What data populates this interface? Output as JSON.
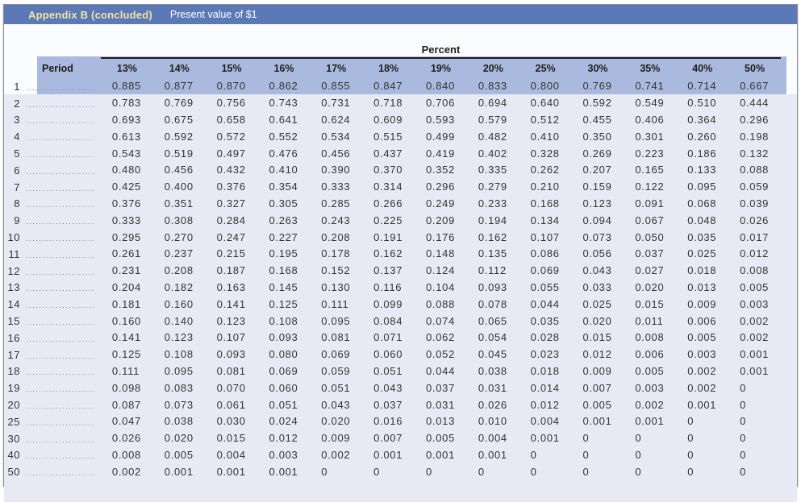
{
  "header": {
    "title": "Appendix B (concluded)",
    "subtitle": "Present value of $1"
  },
  "table": {
    "group_label": "Percent",
    "period_label": "Period",
    "columns": [
      "13%",
      "14%",
      "15%",
      "16%",
      "17%",
      "18%",
      "19%",
      "20%",
      "25%",
      "30%",
      "35%",
      "40%",
      "50%"
    ],
    "leader": "............................................",
    "rows": [
      {
        "period": "1",
        "values": [
          "0.885",
          "0.877",
          "0.870",
          "0.862",
          "0.855",
          "0.847",
          "0.840",
          "0.833",
          "0.800",
          "0.769",
          "0.741",
          "0.714",
          "0.667"
        ]
      },
      {
        "period": "2",
        "values": [
          "0.783",
          "0.769",
          "0.756",
          "0.743",
          "0.731",
          "0.718",
          "0.706",
          "0.694",
          "0.640",
          "0.592",
          "0.549",
          "0.510",
          "0.444"
        ]
      },
      {
        "period": "3",
        "values": [
          "0.693",
          "0.675",
          "0.658",
          "0.641",
          "0.624",
          "0.609",
          "0.593",
          "0.579",
          "0.512",
          "0.455",
          "0.406",
          "0.364",
          "0.296"
        ]
      },
      {
        "period": "4",
        "values": [
          "0.613",
          "0.592",
          "0.572",
          "0.552",
          "0.534",
          "0.515",
          "0.499",
          "0.482",
          "0.410",
          "0.350",
          "0.301",
          "0.260",
          "0.198"
        ]
      },
      {
        "period": "5",
        "values": [
          "0.543",
          "0.519",
          "0.497",
          "0.476",
          "0.456",
          "0.437",
          "0.419",
          "0.402",
          "0.328",
          "0.269",
          "0.223",
          "0.186",
          "0.132"
        ]
      },
      {
        "period": "6",
        "values": [
          "0.480",
          "0.456",
          "0.432",
          "0.410",
          "0.390",
          "0.370",
          "0.352",
          "0.335",
          "0.262",
          "0.207",
          "0.165",
          "0.133",
          "0.088"
        ]
      },
      {
        "period": "7",
        "values": [
          "0.425",
          "0.400",
          "0.376",
          "0.354",
          "0.333",
          "0.314",
          "0.296",
          "0.279",
          "0.210",
          "0.159",
          "0.122",
          "0.095",
          "0.059"
        ]
      },
      {
        "period": "8",
        "values": [
          "0.376",
          "0.351",
          "0.327",
          "0.305",
          "0.285",
          "0.266",
          "0.249",
          "0.233",
          "0.168",
          "0.123",
          "0.091",
          "0.068",
          "0.039"
        ]
      },
      {
        "period": "9",
        "values": [
          "0.333",
          "0.308",
          "0.284",
          "0.263",
          "0.243",
          "0.225",
          "0.209",
          "0.194",
          "0.134",
          "0.094",
          "0.067",
          "0.048",
          "0.026"
        ]
      },
      {
        "period": "10",
        "values": [
          "0.295",
          "0.270",
          "0.247",
          "0.227",
          "0.208",
          "0.191",
          "0.176",
          "0.162",
          "0.107",
          "0.073",
          "0.050",
          "0.035",
          "0.017"
        ]
      },
      {
        "period": "11",
        "values": [
          "0.261",
          "0.237",
          "0.215",
          "0.195",
          "0.178",
          "0.162",
          "0.148",
          "0.135",
          "0.086",
          "0.056",
          "0.037",
          "0.025",
          "0.012"
        ]
      },
      {
        "period": "12",
        "values": [
          "0.231",
          "0.208",
          "0.187",
          "0.168",
          "0.152",
          "0.137",
          "0.124",
          "0.112",
          "0.069",
          "0.043",
          "0.027",
          "0.018",
          "0.008"
        ]
      },
      {
        "period": "13",
        "values": [
          "0.204",
          "0.182",
          "0.163",
          "0.145",
          "0.130",
          "0.116",
          "0.104",
          "0.093",
          "0.055",
          "0.033",
          "0.020",
          "0.013",
          "0.005"
        ]
      },
      {
        "period": "14",
        "values": [
          "0.181",
          "0.160",
          "0.141",
          "0.125",
          "0.111",
          "0.099",
          "0.088",
          "0.078",
          "0.044",
          "0.025",
          "0.015",
          "0.009",
          "0.003"
        ]
      },
      {
        "period": "15",
        "values": [
          "0.160",
          "0.140",
          "0.123",
          "0.108",
          "0.095",
          "0.084",
          "0.074",
          "0.065",
          "0.035",
          "0.020",
          "0.011",
          "0.006",
          "0.002"
        ]
      },
      {
        "period": "16",
        "values": [
          "0.141",
          "0.123",
          "0.107",
          "0.093",
          "0.081",
          "0.071",
          "0.062",
          "0.054",
          "0.028",
          "0.015",
          "0.008",
          "0.005",
          "0.002"
        ]
      },
      {
        "period": "17",
        "values": [
          "0.125",
          "0.108",
          "0.093",
          "0.080",
          "0.069",
          "0.060",
          "0.052",
          "0.045",
          "0.023",
          "0.012",
          "0.006",
          "0.003",
          "0.001"
        ]
      },
      {
        "period": "18",
        "values": [
          "0.111",
          "0.095",
          "0.081",
          "0.069",
          "0.059",
          "0.051",
          "0.044",
          "0.038",
          "0.018",
          "0.009",
          "0.005",
          "0.002",
          "0.001"
        ]
      },
      {
        "period": "19",
        "values": [
          "0.098",
          "0.083",
          "0.070",
          "0.060",
          "0.051",
          "0.043",
          "0.037",
          "0.031",
          "0.014",
          "0.007",
          "0.003",
          "0.002",
          "0"
        ]
      },
      {
        "period": "20",
        "values": [
          "0.087",
          "0.073",
          "0.061",
          "0.051",
          "0.043",
          "0.037",
          "0.031",
          "0.026",
          "0.012",
          "0.005",
          "0.002",
          "0.001",
          "0"
        ]
      },
      {
        "period": "25",
        "values": [
          "0.047",
          "0.038",
          "0.030",
          "0.024",
          "0.020",
          "0.016",
          "0.013",
          "0.010",
          "0.004",
          "0.001",
          "0.001",
          "0",
          "0"
        ]
      },
      {
        "period": "30",
        "values": [
          "0.026",
          "0.020",
          "0.015",
          "0.012",
          "0.009",
          "0.007",
          "0.005",
          "0.004",
          "0.001",
          "0",
          "0",
          "0",
          "0"
        ]
      },
      {
        "period": "40",
        "values": [
          "0.008",
          "0.005",
          "0.004",
          "0.003",
          "0.002",
          "0.001",
          "0.001",
          "0.001",
          "0",
          "0",
          "0",
          "0",
          "0"
        ]
      },
      {
        "period": "50",
        "values": [
          "0.002",
          "0.001",
          "0.001",
          "0.001",
          "0",
          "0",
          "0",
          "0",
          "0",
          "0",
          "0",
          "0",
          "0"
        ]
      }
    ]
  },
  "colors": {
    "title_bar": "#5b79b7",
    "title_text": "#f2e4a4",
    "subtitle_text": "#ffffff",
    "header_band": "#a9bade",
    "body_bg": "#e7eaf5",
    "frame_bg": "#fbfcfe",
    "rule": "#1c1c1c"
  }
}
